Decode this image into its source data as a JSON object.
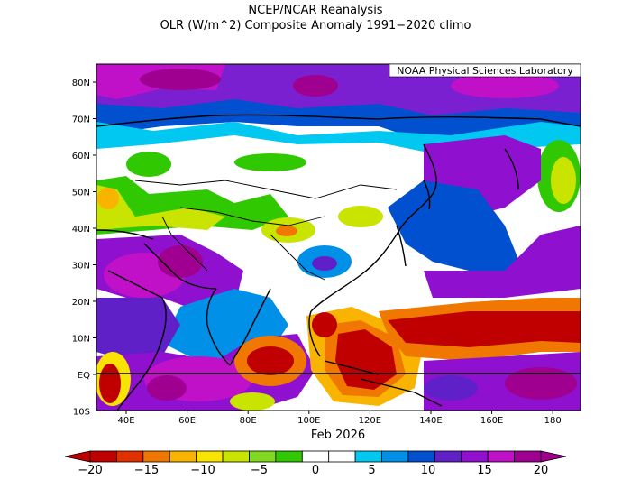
{
  "title_line1": "NCEP/NCAR Reanalysis",
  "title_line2": "OLR (W/m^2) Composite Anomaly 1991−2020 climo",
  "credit": "NOAA Physical Sciences Laboratory",
  "time_label": "Feb 2026",
  "lat_ticks": [
    "80N",
    "70N",
    "60N",
    "50N",
    "40N",
    "30N",
    "20N",
    "10N",
    "EQ",
    "10S"
  ],
  "lon_ticks": [
    "40E",
    "60E",
    "80E",
    "100E",
    "120E",
    "140E",
    "160E",
    "180"
  ],
  "colorbar_labels": [
    "−20",
    "−15",
    "−10",
    "−5",
    "0",
    "5",
    "10",
    "15",
    "20"
  ],
  "colorbar_colors": [
    "#c00000",
    "#e03000",
    "#f07800",
    "#f8b400",
    "#f8e400",
    "#c8e400",
    "#80d820",
    "#30c800",
    "#ffffff",
    "#ffffff",
    "#00c8f0",
    "#0090e8",
    "#0050d0",
    "#6020c8",
    "#9010d0",
    "#c010c8",
    "#a00090"
  ],
  "chart_data": {
    "type": "heatmap",
    "title": "OLR (W/m^2) Composite Anomaly 1991−2020 climo",
    "x_range": [
      "30E",
      "190E"
    ],
    "y_range": [
      "10S",
      "85N"
    ],
    "color_scale_range": [
      -20,
      20
    ],
    "color_scale_ticks": [
      -20,
      -15,
      -10,
      -5,
      0,
      5,
      10,
      15,
      20
    ]
  }
}
